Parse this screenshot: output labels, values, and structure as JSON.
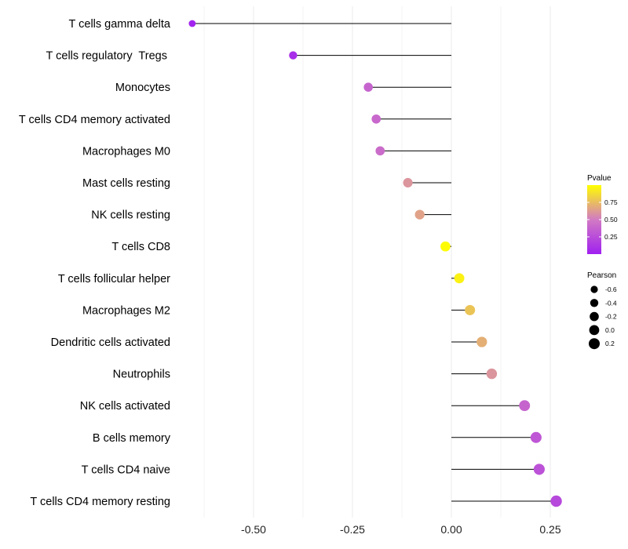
{
  "chart_data": {
    "type": "lollipop",
    "title": "",
    "xlabel": "",
    "ylabel": "",
    "xlim": [
      -0.7,
      0.3
    ],
    "x_ticks": [
      -0.5,
      -0.25,
      0.0,
      0.25
    ],
    "x_tick_labels": [
      "-0.50",
      "-0.25",
      "0.00",
      "0.25"
    ],
    "grid": true,
    "categories": [
      "T cells gamma delta",
      "T cells regulatory  Tregs ",
      "Monocytes",
      "T cells CD4 memory activated",
      "Macrophages M0",
      "Mast cells resting",
      "NK cells resting",
      "T cells CD8",
      "T cells follicular helper",
      "Macrophages M2",
      "Dendritic cells activated",
      "Neutrophils",
      "NK cells activated",
      "B cells memory",
      "T cells CD4 naive",
      "T cells CD4 memory resting"
    ],
    "pearson": [
      -0.655,
      -0.4,
      -0.21,
      -0.19,
      -0.18,
      -0.11,
      -0.08,
      -0.015,
      0.02,
      0.047,
      0.077,
      0.102,
      0.185,
      0.214,
      0.222,
      0.265
    ],
    "pvalue": [
      0.02,
      0.08,
      0.38,
      0.4,
      0.42,
      0.6,
      0.65,
      0.99,
      0.95,
      0.78,
      0.7,
      0.6,
      0.38,
      0.3,
      0.28,
      0.22
    ],
    "size_legend": {
      "title": "Pearson",
      "values": [
        -0.6,
        -0.4,
        -0.2,
        0.0,
        0.2
      ],
      "labels": [
        "-0.6",
        "-0.4",
        "-0.2",
        "0.0",
        "0.2"
      ]
    },
    "color_legend": {
      "title": "Pvalue",
      "range": [
        0.0,
        1.0
      ],
      "ticks": [
        0.25,
        0.5,
        0.75
      ],
      "tick_labels": [
        "0.25",
        "0.50",
        "0.75"
      ],
      "color_low": "#a020f0",
      "color_mid": "#d27ac3",
      "color_high": "#ffff00"
    },
    "line_color": "#000000",
    "grid_color": "#ebebeb",
    "legend_position": "right"
  }
}
